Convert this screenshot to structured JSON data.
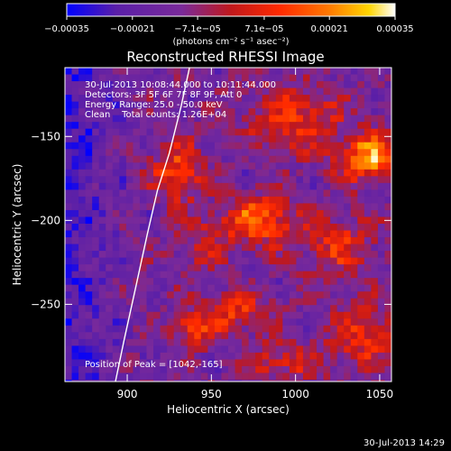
{
  "chart_data": {
    "type": "heatmap",
    "title": "Reconstructed RHESSI Image",
    "xlabel": "Heliocentric X (arcsec)",
    "ylabel": "Heliocentric Y (arcsec)",
    "xlim": [
      863,
      1057
    ],
    "ylim": [
      -296,
      -109
    ],
    "xticks": [
      900,
      950,
      1000,
      1050
    ],
    "xtick_labels": [
      "900",
      "950",
      "1000",
      "1050"
    ],
    "yticks": [
      -150,
      -200,
      -250
    ],
    "ytick_labels": [
      "−150",
      "−200",
      "−250"
    ],
    "colorbar": {
      "range": [
        -0.00035,
        0.00035
      ],
      "tick_values": [
        -0.00035,
        -0.00021,
        -7.1e-05,
        7.1e-05,
        0.00021,
        0.00035
      ],
      "tick_labels": [
        "−0.00035",
        "−0.00021",
        "−7.1e−05",
        "7.1e−05",
        "0.00021",
        "0.00035"
      ],
      "unit_label": "(photons cm⁻² s⁻¹ asec⁻²)",
      "colors": [
        "#0000ff",
        "#5a1fa8",
        "#7a2a9a",
        "#c0181c",
        "#ff2a00",
        "#ff7a00",
        "#ffd500",
        "#ffffff"
      ]
    },
    "annotations": [
      "30-Jul-2013 10:08:44.000 to 10:11:44.000",
      "Detectors: 3F 5F 6F 7F 8F 9F, Att 0",
      "Energy Range: 25.0 - 50.0 keV",
      "Clean    Total counts: 1.26E+04"
    ],
    "peak_label": "Position of Peak = [1042,-165]",
    "peak": [
      1042,
      -165
    ],
    "limb_curve": {
      "x": [
        893,
        898,
        905,
        912,
        918,
        925,
        932,
        937
      ],
      "y": [
        -296,
        -272,
        -240,
        -208,
        -182,
        -160,
        -132,
        -109
      ]
    },
    "hotspots": [
      {
        "x": 1045,
        "y": -163,
        "amp": 1.0,
        "sx": 13,
        "sy": 10
      },
      {
        "x": 978,
        "y": -200,
        "amp": 0.8,
        "sx": 15,
        "sy": 10
      },
      {
        "x": 930,
        "y": -172,
        "amp": 0.72,
        "sx": 10,
        "sy": 12
      },
      {
        "x": 965,
        "y": -255,
        "amp": 0.55,
        "sx": 14,
        "sy": 9
      },
      {
        "x": 938,
        "y": -265,
        "amp": 0.6,
        "sx": 8,
        "sy": 8
      },
      {
        "x": 1000,
        "y": -140,
        "amp": 0.55,
        "sx": 20,
        "sy": 14
      },
      {
        "x": 1025,
        "y": -215,
        "amp": 0.5,
        "sx": 16,
        "sy": 13
      },
      {
        "x": 1040,
        "y": -270,
        "amp": 0.5,
        "sx": 16,
        "sy": 14
      },
      {
        "x": 990,
        "y": -285,
        "amp": 0.45,
        "sx": 16,
        "sy": 8
      },
      {
        "x": 945,
        "y": -215,
        "amp": 0.35,
        "sx": 10,
        "sy": 12
      }
    ],
    "grid": false
  },
  "footer": {
    "timestamp": "30-Jul-2013 14:29"
  }
}
